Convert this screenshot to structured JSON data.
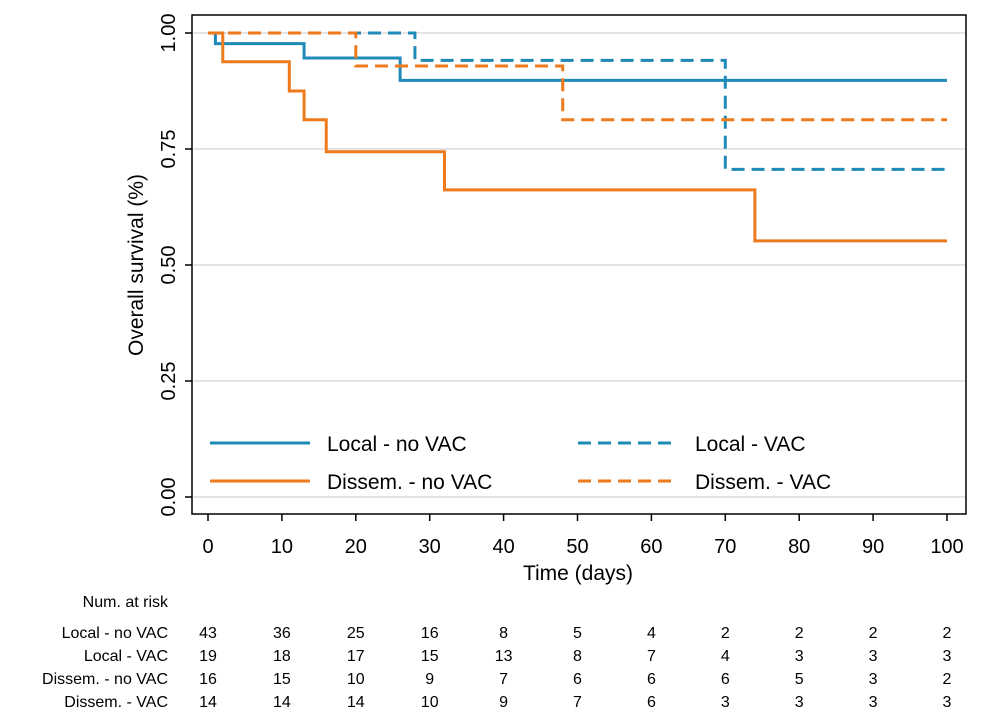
{
  "chart_data": {
    "type": "line",
    "step": true,
    "xlabel": "Time (days)",
    "ylabel": "Overall survival (%)",
    "xlim": [
      0,
      100
    ],
    "ylim": [
      0,
      1
    ],
    "xticks": [
      0,
      10,
      20,
      30,
      40,
      50,
      60,
      70,
      80,
      90,
      100
    ],
    "yticks": [
      0,
      0.25,
      0.5,
      0.75,
      1
    ],
    "ytick_labels": [
      "0.00",
      "0.25",
      "0.50",
      "0.75",
      "1.00"
    ],
    "grid": true,
    "legend_position": "bottom-inside",
    "series": [
      {
        "name": "Local - no VAC",
        "color": "#1f8ab8",
        "style": "solid",
        "x": [
          0,
          1,
          13,
          26,
          100
        ],
        "y": [
          1.0,
          0.977,
          0.946,
          0.898,
          0.898
        ]
      },
      {
        "name": "Local - VAC",
        "color": "#1f8ab8",
        "style": "dashed",
        "x": [
          0,
          28,
          70,
          100
        ],
        "y": [
          1.0,
          0.941,
          0.706,
          0.706
        ]
      },
      {
        "name": "Dissem. - no VAC",
        "color": "#ed7a1c",
        "style": "solid",
        "x": [
          0,
          2,
          11,
          13,
          16,
          32,
          74,
          100
        ],
        "y": [
          1.0,
          0.938,
          0.875,
          0.813,
          0.744,
          0.662,
          0.552,
          0.552
        ]
      },
      {
        "name": "Dissem. - VAC",
        "color": "#ed7a1c",
        "style": "dashed",
        "x": [
          0,
          20,
          48,
          100
        ],
        "y": [
          1.0,
          0.929,
          0.813,
          0.813
        ]
      }
    ],
    "risk_table": {
      "title": "Num. at risk",
      "times": [
        0,
        10,
        20,
        30,
        40,
        50,
        60,
        70,
        80,
        90,
        100
      ],
      "rows": [
        {
          "label": "Local - no VAC",
          "values": [
            43,
            36,
            25,
            16,
            8,
            5,
            4,
            2,
            2,
            2,
            2
          ]
        },
        {
          "label": "Local - VAC",
          "values": [
            19,
            18,
            17,
            15,
            13,
            8,
            7,
            4,
            3,
            3,
            3
          ]
        },
        {
          "label": "Dissem. - no VAC",
          "values": [
            16,
            15,
            10,
            9,
            7,
            6,
            6,
            6,
            5,
            3,
            2
          ]
        },
        {
          "label": "Dissem. - VAC",
          "values": [
            14,
            14,
            14,
            10,
            9,
            7,
            6,
            3,
            3,
            3,
            3
          ]
        }
      ]
    }
  }
}
